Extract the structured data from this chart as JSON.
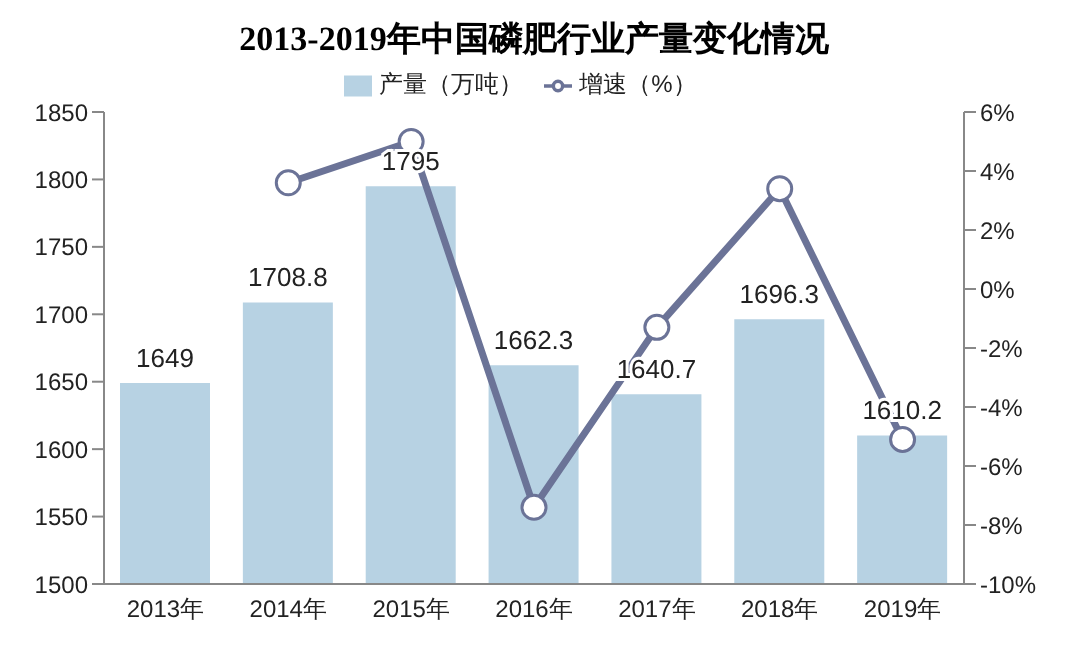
{
  "chart_data": {
    "type": "bar",
    "title": "2013-2019年中国磷肥行业产量变化情况",
    "categories": [
      "2013年",
      "2014年",
      "2015年",
      "2016年",
      "2017年",
      "2018年",
      "2019年"
    ],
    "series": [
      {
        "name": "产量（万吨）",
        "color": "#b7d2e3",
        "values": [
          1649,
          1708.8,
          1795,
          1662.3,
          1640.7,
          1696.3,
          1610.2
        ],
        "value_labels": [
          "1649",
          "1708.8",
          "1795",
          "1662.3",
          "1640.7",
          "1696.3",
          "1610.2"
        ]
      },
      {
        "name": "增速（%）",
        "type": "line",
        "axis": "y2",
        "color": "#6b7397",
        "marker": "circle",
        "values": [
          null,
          3.6,
          5.0,
          -7.4,
          -1.3,
          3.4,
          -5.1
        ]
      }
    ],
    "ylim": [
      1500,
      1850
    ],
    "yticks": [
      1500,
      1550,
      1600,
      1650,
      1700,
      1750,
      1800,
      1850
    ],
    "y2lim": [
      -10,
      6
    ],
    "y2ticks": [
      {
        "value": -10,
        "label": "-10%"
      },
      {
        "value": -8,
        "label": "-8%"
      },
      {
        "value": -6,
        "label": "-6%"
      },
      {
        "value": -4,
        "label": "-4%"
      },
      {
        "value": -2,
        "label": "-2%"
      },
      {
        "value": 0,
        "label": "0%"
      },
      {
        "value": 2,
        "label": "2%"
      },
      {
        "value": 4,
        "label": "4%"
      },
      {
        "value": 6,
        "label": "6%"
      }
    ],
    "legend": "top",
    "grid": false
  }
}
